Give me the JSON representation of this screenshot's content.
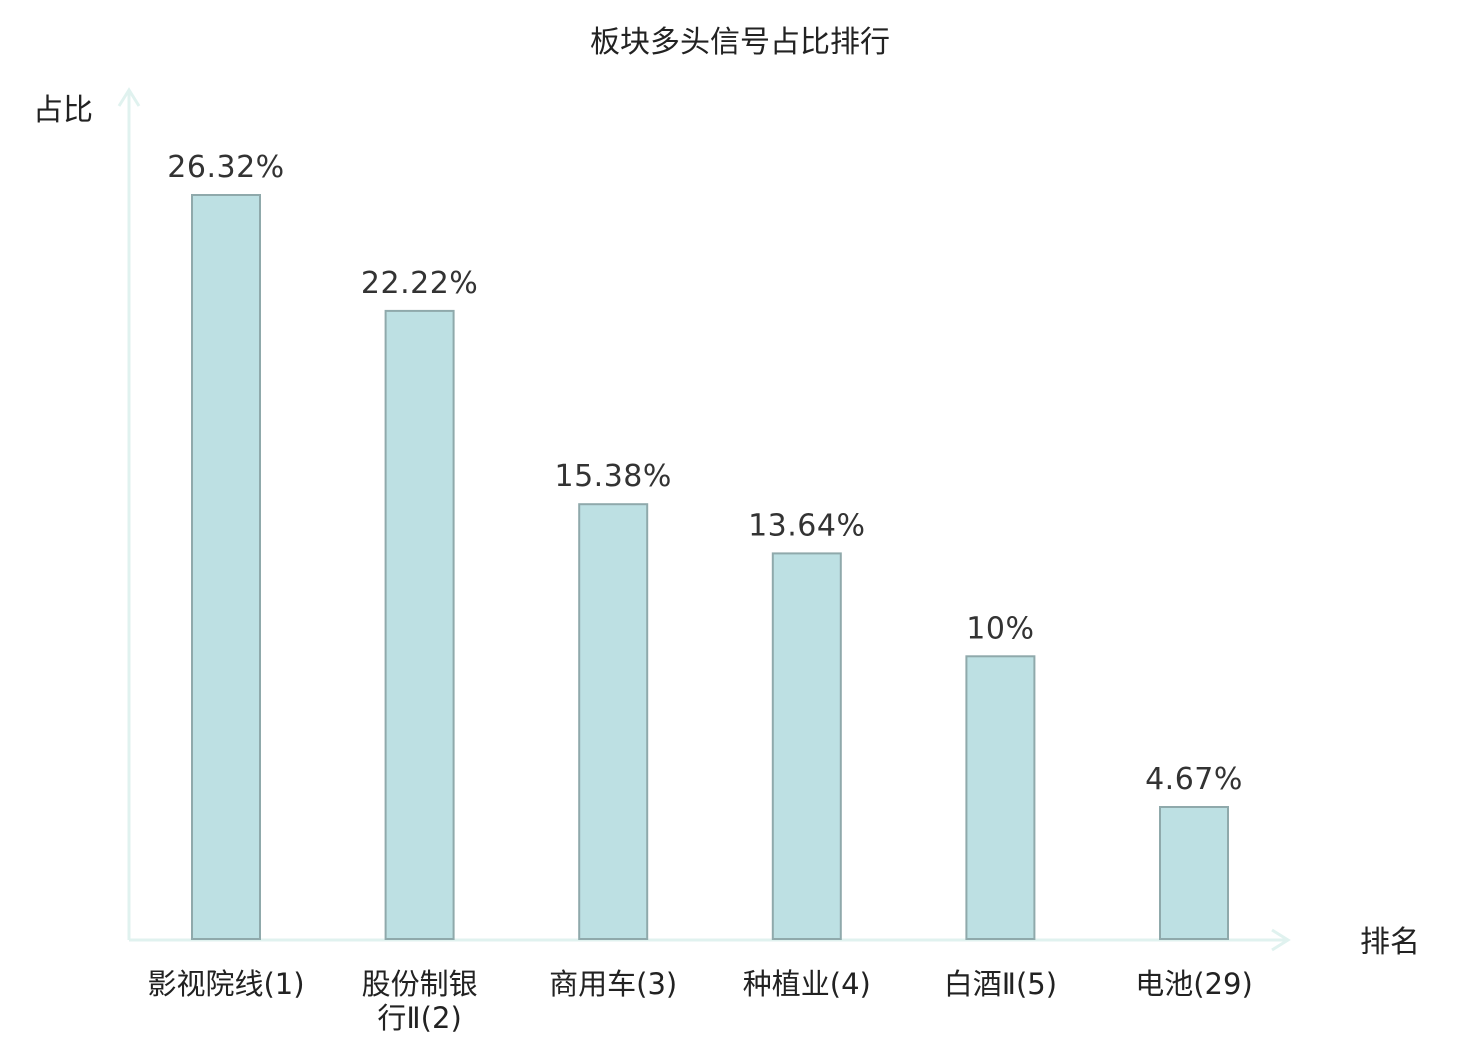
{
  "chart_data": {
    "type": "bar",
    "title": "板块多头信号占比排行",
    "ylabel": "占比",
    "xlabel": "排名",
    "categories": [
      [
        "影视院线(1)"
      ],
      [
        "股份制银",
        "行Ⅱ(2)"
      ],
      [
        "商用车(3)"
      ],
      [
        "种植业(4)"
      ],
      [
        "白酒Ⅱ(5)"
      ],
      [
        "电池(29)"
      ]
    ],
    "values": [
      26.32,
      22.22,
      15.38,
      13.64,
      10,
      4.67
    ],
    "value_labels": [
      "26.32%",
      "22.22%",
      "15.38%",
      "13.64%",
      "10%",
      "4.67%"
    ],
    "highlight_index": 5,
    "ylim": [
      0,
      26.32
    ],
    "grid": false,
    "colors": {
      "bar_fill": "#bde0e3",
      "bar_stroke": "#8fa9ab",
      "axis": "#e0f2ef",
      "highlight_text": "#e02020",
      "text": "#222222"
    }
  }
}
